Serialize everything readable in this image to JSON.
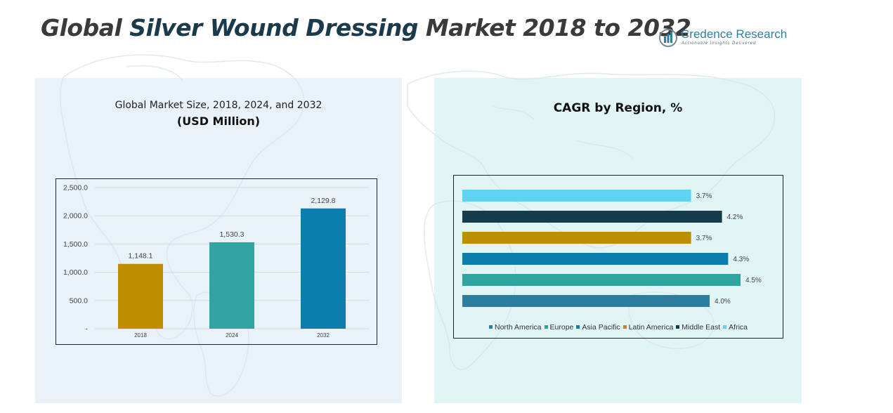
{
  "title": {
    "part1": "Global ",
    "part2": "Silver Wound Dressing",
    "part3": " Market 2018 to 2032"
  },
  "logo": {
    "name": "Credence Research",
    "tagline": "Actionable Insights Delivered",
    "icon": "credence-bars-logo",
    "color": "#2f7fa3"
  },
  "left_panel": {
    "subtitle": "Global Market Size, 2018, 2024, and 2032",
    "unit": "(USD Million)"
  },
  "right_panel": {
    "title": "CAGR by Region, %"
  },
  "chart_data": [
    {
      "type": "bar",
      "categories": [
        "2018",
        "2024",
        "2032"
      ],
      "values": [
        1148.1,
        1530.3,
        2129.8
      ],
      "value_labels": [
        "1,148.1",
        "1,530.3",
        "2,129.8"
      ],
      "colors": [
        "#bf8d00",
        "#2fa4a0",
        "#0b7eae"
      ],
      "ylim": [
        0,
        2500
      ],
      "yticks": [
        0,
        500,
        1000,
        1500,
        2000,
        2500
      ],
      "ytick_labels": [
        "-",
        "500.0",
        "1,000.0",
        "1,500.0",
        "2,000.0",
        "2,500.0"
      ],
      "grid": true,
      "title": "Global Market Size, 2018, 2024, and 2032",
      "ylabel": "(USD Million)",
      "xlabel": ""
    },
    {
      "type": "bar",
      "orientation": "horizontal",
      "categories": [
        "North America",
        "Europe",
        "Asia Pacific",
        "Latin America",
        "Middle East",
        "Africa"
      ],
      "values": [
        4.0,
        4.5,
        4.3,
        3.7,
        4.2,
        3.7
      ],
      "value_labels": [
        "4.0%",
        "4.5%",
        "4.3%",
        "3.7%",
        "4.2%",
        "3.7%"
      ],
      "colors": [
        "#2e7d9e",
        "#2fa4a0",
        "#0b7eae",
        "#bf8d00",
        "#163c4c",
        "#5ed3f5"
      ],
      "xlim": [
        0,
        5
      ],
      "legend": "bottom",
      "title": "CAGR by Region, %"
    }
  ]
}
